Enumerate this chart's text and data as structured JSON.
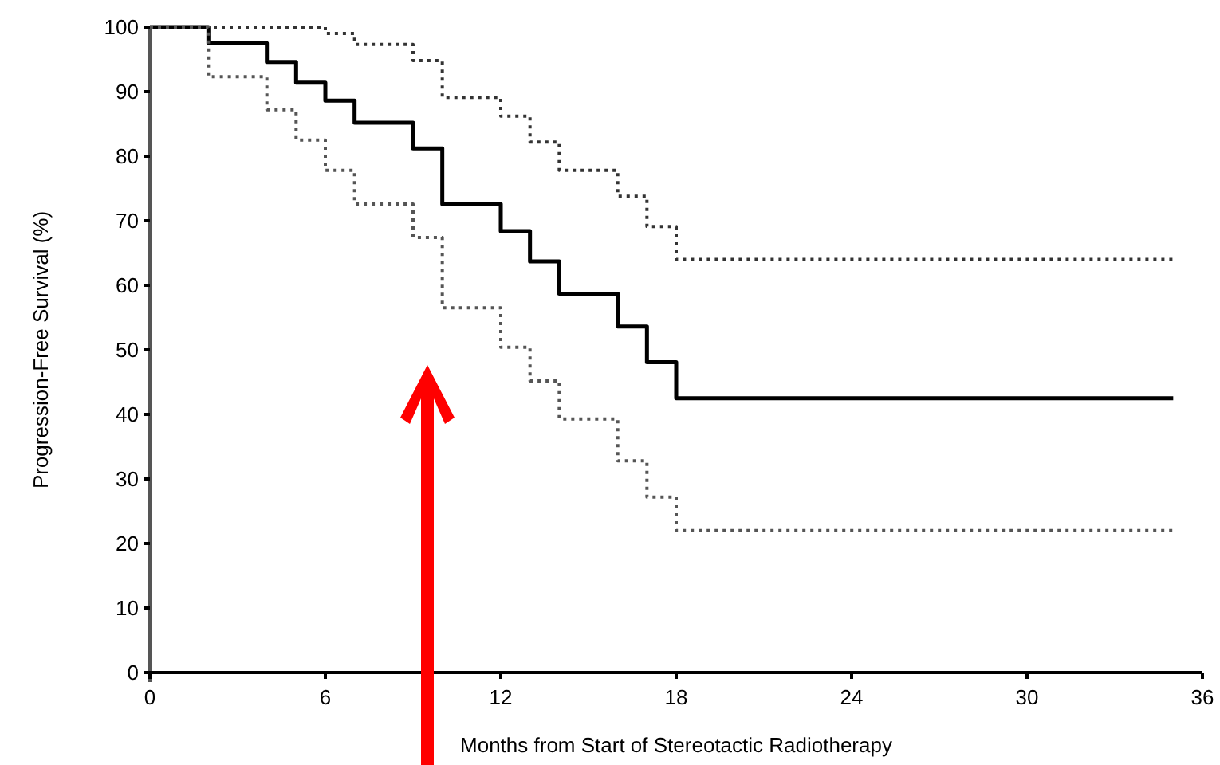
{
  "chart_data": {
    "type": "step",
    "xlabel": "Months from Start of Stereotactic Radiotherapy",
    "ylabel": "Progression-Free Survival (%)",
    "xlim": [
      0,
      36
    ],
    "ylim": [
      0,
      100
    ],
    "xticks": [
      0,
      6,
      12,
      18,
      24,
      30,
      36
    ],
    "yticks": [
      0,
      10,
      20,
      30,
      40,
      50,
      60,
      70,
      80,
      90,
      100
    ],
    "grid": false,
    "marker": "none",
    "series": [
      {
        "color": "#333333",
        "line_style": "dotted",
        "x": [
          0,
          6,
          7,
          9,
          10,
          12,
          13,
          14,
          16,
          17,
          18,
          35
        ],
        "values": [
          100,
          99,
          97.3,
          94.8,
          89.1,
          86.2,
          82.2,
          77.8,
          73.8,
          69.1,
          64,
          64
        ]
      },
      {
        "color": "#000000",
        "line_style": "solid",
        "x": [
          0,
          2,
          4,
          5,
          6,
          7,
          9,
          10,
          12,
          13,
          14,
          16,
          17,
          18,
          35
        ],
        "values": [
          100,
          97.5,
          94.6,
          91.4,
          88.6,
          85.2,
          81.2,
          72.6,
          68.4,
          63.7,
          58.7,
          53.6,
          48.1,
          42.5,
          42.5
        ]
      },
      {
        "color": "#555555",
        "line_style": "dotted",
        "x": [
          0,
          2,
          4,
          5,
          6,
          7,
          9,
          10,
          12,
          13,
          14,
          16,
          17,
          18,
          35
        ],
        "values": [
          100,
          92.3,
          87.2,
          82.5,
          77.8,
          72.6,
          67.4,
          56.5,
          50.4,
          45.2,
          39.3,
          32.8,
          27.2,
          22,
          22
        ]
      }
    ]
  }
}
